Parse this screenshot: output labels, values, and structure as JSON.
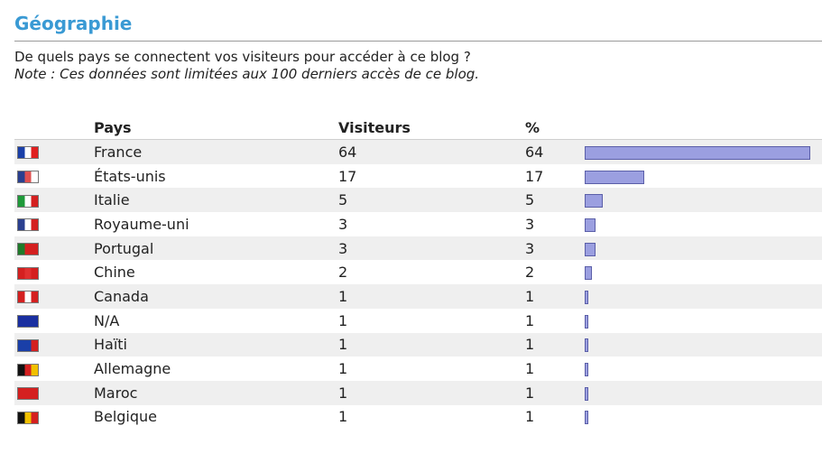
{
  "section": {
    "title": "Géographie",
    "question": "De quels pays se connectent vos visiteurs pour accéder à ce blog ?",
    "note": "Note : Ces données sont limitées aux 100 derniers accès de ce blog."
  },
  "table": {
    "headers": {
      "flag": "",
      "country": "Pays",
      "visitors": "Visiteurs",
      "percent": "%"
    },
    "rows": [
      {
        "flag_icon": "flag-france-icon",
        "colors": [
          "#1a3fa8",
          "#ffffff",
          "#e02020"
        ],
        "country": "France",
        "visitors": "64",
        "percent": "64",
        "share": 64
      },
      {
        "flag_icon": "flag-usa-icon",
        "colors": [
          "#2a3f8f",
          "#e05050",
          "#ffffff"
        ],
        "country": "États-unis",
        "visitors": "17",
        "percent": "17",
        "share": 17
      },
      {
        "flag_icon": "flag-italy-icon",
        "colors": [
          "#1f9a3a",
          "#ffffff",
          "#d42020"
        ],
        "country": "Italie",
        "visitors": "5",
        "percent": "5",
        "share": 5
      },
      {
        "flag_icon": "flag-uk-icon",
        "colors": [
          "#2a3f8f",
          "#ffffff",
          "#d42020"
        ],
        "country": "Royaume-uni",
        "visitors": "3",
        "percent": "3",
        "share": 3
      },
      {
        "flag_icon": "flag-portugal-icon",
        "colors": [
          "#1f7a2a",
          "#d42020",
          "#d42020"
        ],
        "country": "Portugal",
        "visitors": "3",
        "percent": "3",
        "share": 3
      },
      {
        "flag_icon": "flag-china-icon",
        "colors": [
          "#d42020",
          "#e03030",
          "#d42020"
        ],
        "country": "Chine",
        "visitors": "2",
        "percent": "2",
        "share": 2
      },
      {
        "flag_icon": "flag-canada-icon",
        "colors": [
          "#d42020",
          "#ffffff",
          "#d42020"
        ],
        "country": "Canada",
        "visitors": "1",
        "percent": "1",
        "share": 1
      },
      {
        "flag_icon": "flag-eu-icon",
        "colors": [
          "#1a2fa0",
          "#1a2fa0",
          "#1a2fa0"
        ],
        "country": "N/A",
        "visitors": "1",
        "percent": "1",
        "share": 1
      },
      {
        "flag_icon": "flag-haiti-icon",
        "colors": [
          "#1a3fa8",
          "#1a3fa8",
          "#d42020"
        ],
        "country": "Haïti",
        "visitors": "1",
        "percent": "1",
        "share": 1
      },
      {
        "flag_icon": "flag-germany-icon",
        "colors": [
          "#111111",
          "#d42020",
          "#f0c000"
        ],
        "country": "Allemagne",
        "visitors": "1",
        "percent": "1",
        "share": 1
      },
      {
        "flag_icon": "flag-morocco-icon",
        "colors": [
          "#d42020",
          "#d42020",
          "#d42020"
        ],
        "country": "Maroc",
        "visitors": "1",
        "percent": "1",
        "share": 1
      },
      {
        "flag_icon": "flag-belgium-icon",
        "colors": [
          "#111111",
          "#f0c000",
          "#d42020"
        ],
        "country": "Belgique",
        "visitors": "1",
        "percent": "1",
        "share": 1
      }
    ]
  }
}
